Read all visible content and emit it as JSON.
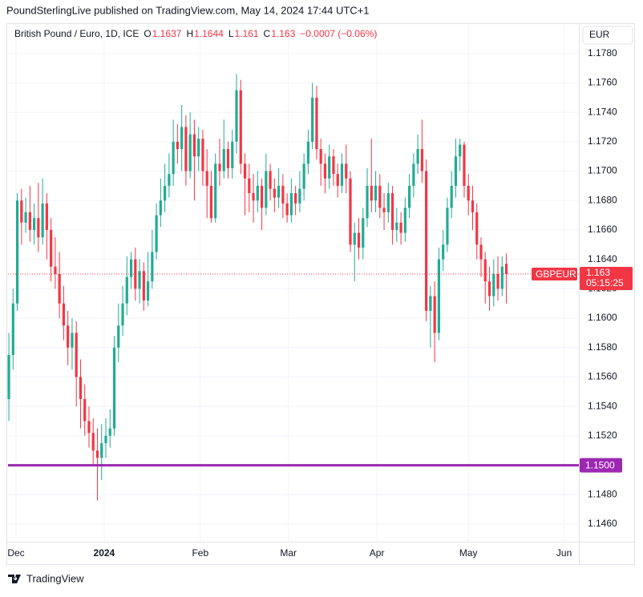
{
  "header": {
    "title": "PoundSterlingLive published on TradingView.com, May 14, 2024 17:44 UTC+1"
  },
  "footer": {
    "brand": "TradingView"
  },
  "chart_data": {
    "type": "candlestick",
    "title": "British Pound / Euro, 1D, ICE",
    "legend_keys": {
      "open": "O",
      "high": "H",
      "low": "L",
      "close": "C"
    },
    "change": "−0.0007 (−0.06%)",
    "currency": "EUR",
    "symbol": "GBPEUR",
    "countdown": "05:15:25",
    "up_color": "#22ab94",
    "down_color": "#f23645",
    "grid": true,
    "xlim": [
      -0.2,
      135.2
    ],
    "xticks": [
      {
        "value": 1.7,
        "label": "Dec"
      },
      {
        "value": 22.6,
        "label": "2024"
      },
      {
        "value": 45.4,
        "label": "Feb"
      },
      {
        "value": 66.3,
        "label": "Mar"
      },
      {
        "value": 87.3,
        "label": "Apr"
      },
      {
        "value": 109,
        "label": "May"
      },
      {
        "value": 131.7,
        "label": "Jun"
      }
    ],
    "ylim": [
      1.1448,
      1.18
    ],
    "yticks": [
      {
        "value": 1.146,
        "label": "1.1460"
      },
      {
        "value": 1.148,
        "label": "1.1480"
      },
      {
        "value": 1.15,
        "label": "1.1500"
      },
      {
        "value": 1.152,
        "label": "1.1520"
      },
      {
        "value": 1.154,
        "label": "1.1540"
      },
      {
        "value": 1.156,
        "label": "1.1560"
      },
      {
        "value": 1.158,
        "label": "1.1580"
      },
      {
        "value": 1.16,
        "label": "1.1600"
      },
      {
        "value": 1.162,
        "label": "1.1620"
      },
      {
        "value": 1.164,
        "label": "1.1640"
      },
      {
        "value": 1.166,
        "label": "1.1660"
      },
      {
        "value": 1.168,
        "label": "1.1680"
      },
      {
        "value": 1.17,
        "label": "1.1700"
      },
      {
        "value": 1.172,
        "label": "1.1720"
      },
      {
        "value": 1.174,
        "label": "1.1740"
      },
      {
        "value": 1.176,
        "label": "1.1760"
      },
      {
        "value": 1.178,
        "label": "1.1780"
      }
    ],
    "hline": {
      "value": 1.15,
      "label": "1.1500",
      "color": "#9c27b0"
    },
    "series": {
      "open": [
        1.1545,
        1.1575,
        1.161,
        1.168,
        1.1665,
        1.1672,
        1.166,
        1.1668,
        1.1655,
        1.1678,
        1.166,
        1.1635,
        1.163,
        1.161,
        1.1595,
        1.158,
        1.159,
        1.156,
        1.1545,
        1.153,
        1.1522,
        1.151,
        1.1505,
        1.1515,
        1.152,
        1.1525,
        1.158,
        1.1595,
        1.161,
        1.1628,
        1.164,
        1.162,
        1.1632,
        1.1612,
        1.1625,
        1.1645,
        1.167,
        1.168,
        1.169,
        1.1698,
        1.172,
        1.1715,
        1.173,
        1.17,
        1.1725,
        1.171,
        1.1722,
        1.17,
        1.169,
        1.1668,
        1.1705,
        1.17,
        1.1715,
        1.1702,
        1.172,
        1.1755,
        1.1705,
        1.1695,
        1.1685,
        1.168,
        1.169,
        1.1675,
        1.17,
        1.1688,
        1.1682,
        1.169,
        1.1678,
        1.167,
        1.1685,
        1.1678,
        1.1688,
        1.1705,
        1.172,
        1.175,
        1.1715,
        1.1705,
        1.1695,
        1.171,
        1.1698,
        1.169,
        1.1705,
        1.1695,
        1.165,
        1.1658,
        1.1648,
        1.1668,
        1.169,
        1.168,
        1.169,
        1.1675,
        1.1672,
        1.1685,
        1.166,
        1.1665,
        1.1658,
        1.1675,
        1.169,
        1.1705,
        1.1715,
        1.17,
        1.1605,
        1.1615,
        1.159,
        1.164,
        1.165,
        1.1675,
        1.169,
        1.171,
        1.1718,
        1.169,
        1.168,
        1.1672,
        1.165,
        1.164,
        1.1625,
        1.1615,
        1.163,
        1.162,
        1.1637
      ],
      "high": [
        1.159,
        1.162,
        1.1685,
        1.1688,
        1.1682,
        1.169,
        1.1678,
        1.1692,
        1.1695,
        1.1685,
        1.1668,
        1.1655,
        1.1645,
        1.1622,
        1.1605,
        1.16,
        1.1598,
        1.1572,
        1.1555,
        1.154,
        1.1532,
        1.1525,
        1.1528,
        1.1532,
        1.1538,
        1.1588,
        1.161,
        1.1622,
        1.1642,
        1.1645,
        1.1648,
        1.164,
        1.1638,
        1.1645,
        1.166,
        1.1678,
        1.1695,
        1.1705,
        1.1712,
        1.1735,
        1.1732,
        1.1745,
        1.1738,
        1.174,
        1.1735,
        1.173,
        1.1728,
        1.1715,
        1.17,
        1.1712,
        1.1722,
        1.1735,
        1.172,
        1.1728,
        1.1766,
        1.1762,
        1.1712,
        1.1705,
        1.1698,
        1.17,
        1.1695,
        1.1712,
        1.1705,
        1.1695,
        1.1702,
        1.1698,
        1.1685,
        1.1695,
        1.169,
        1.17,
        1.1712,
        1.1728,
        1.176,
        1.1758,
        1.1722,
        1.1712,
        1.1718,
        1.1715,
        1.1705,
        1.1712,
        1.1718,
        1.17,
        1.1665,
        1.1668,
        1.1675,
        1.1702,
        1.1722,
        1.17,
        1.1698,
        1.1685,
        1.1692,
        1.169,
        1.1675,
        1.1672,
        1.1682,
        1.1698,
        1.1712,
        1.1725,
        1.1735,
        1.1708,
        1.1622,
        1.1625,
        1.1648,
        1.166,
        1.1682,
        1.17,
        1.1722,
        1.1722,
        1.172,
        1.1698,
        1.169,
        1.1678,
        1.1655,
        1.1645,
        1.1635,
        1.164,
        1.1642,
        1.1642,
        1.1644
      ],
      "low": [
        1.153,
        1.1565,
        1.1605,
        1.165,
        1.1658,
        1.1652,
        1.165,
        1.1645,
        1.165,
        1.164,
        1.1625,
        1.162,
        1.16,
        1.1585,
        1.1568,
        1.1565,
        1.154,
        1.1525,
        1.152,
        1.1512,
        1.15,
        1.1476,
        1.149,
        1.1505,
        1.1512,
        1.152,
        1.157,
        1.1588,
        1.1602,
        1.162,
        1.1612,
        1.161,
        1.1605,
        1.1608,
        1.162,
        1.164,
        1.1662,
        1.1672,
        1.1682,
        1.169,
        1.1705,
        1.17,
        1.169,
        1.1695,
        1.168,
        1.17,
        1.169,
        1.1668,
        1.1665,
        1.1665,
        1.169,
        1.1695,
        1.1695,
        1.1695,
        1.1712,
        1.1698,
        1.167,
        1.1672,
        1.1665,
        1.1672,
        1.166,
        1.167,
        1.168,
        1.1672,
        1.1675,
        1.1668,
        1.1665,
        1.1665,
        1.167,
        1.1672,
        1.168,
        1.1698,
        1.1715,
        1.1708,
        1.169,
        1.1685,
        1.1688,
        1.169,
        1.1682,
        1.1685,
        1.1685,
        1.1645,
        1.1625,
        1.164,
        1.164,
        1.1662,
        1.1672,
        1.1672,
        1.1668,
        1.166,
        1.1665,
        1.165,
        1.1652,
        1.165,
        1.1652,
        1.1668,
        1.1682,
        1.1698,
        1.1692,
        1.1598,
        1.158,
        1.157,
        1.1585,
        1.1632,
        1.1645,
        1.1668,
        1.1682,
        1.17,
        1.1682,
        1.167,
        1.166,
        1.164,
        1.1628,
        1.161,
        1.1605,
        1.1608,
        1.1612,
        1.1615,
        1.161
      ],
      "close": [
        1.1575,
        1.161,
        1.168,
        1.1665,
        1.1672,
        1.166,
        1.1668,
        1.1655,
        1.1678,
        1.166,
        1.1635,
        1.163,
        1.161,
        1.1595,
        1.158,
        1.159,
        1.156,
        1.1545,
        1.153,
        1.1522,
        1.151,
        1.1505,
        1.1515,
        1.152,
        1.1525,
        1.158,
        1.1595,
        1.161,
        1.1628,
        1.164,
        1.162,
        1.1632,
        1.1612,
        1.1625,
        1.1645,
        1.167,
        1.168,
        1.169,
        1.1698,
        1.172,
        1.1715,
        1.173,
        1.17,
        1.1725,
        1.171,
        1.1722,
        1.17,
        1.169,
        1.1668,
        1.1705,
        1.17,
        1.1715,
        1.1702,
        1.172,
        1.1755,
        1.1705,
        1.1695,
        1.1685,
        1.168,
        1.169,
        1.1675,
        1.17,
        1.1688,
        1.1682,
        1.169,
        1.1678,
        1.167,
        1.1685,
        1.1678,
        1.1688,
        1.1705,
        1.172,
        1.175,
        1.1715,
        1.1705,
        1.1695,
        1.171,
        1.1698,
        1.169,
        1.1705,
        1.1695,
        1.165,
        1.1658,
        1.1648,
        1.1668,
        1.169,
        1.168,
        1.169,
        1.1675,
        1.1672,
        1.1685,
        1.166,
        1.1665,
        1.1658,
        1.1675,
        1.169,
        1.1705,
        1.1715,
        1.17,
        1.1605,
        1.1615,
        1.159,
        1.164,
        1.165,
        1.1675,
        1.169,
        1.171,
        1.1718,
        1.169,
        1.168,
        1.1672,
        1.165,
        1.164,
        1.1625,
        1.1615,
        1.163,
        1.162,
        1.1635,
        1.163
      ]
    }
  }
}
